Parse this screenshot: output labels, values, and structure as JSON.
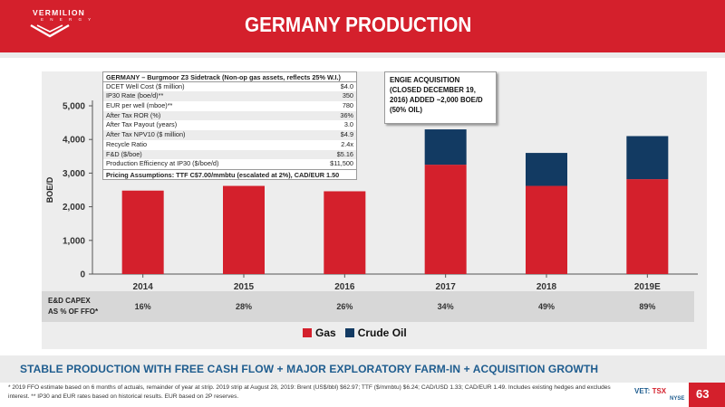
{
  "brand": {
    "name": "VERMILION",
    "sub": "E N E R G Y"
  },
  "title": "GERMANY PRODUCTION",
  "colors": {
    "header": "#d4202c",
    "gas": "#d4202c",
    "crude_oil": "#123a62",
    "banner_text": "#1f5d8f"
  },
  "info_table": {
    "title": "GERMANY – Burgmoor Z3 Sidetrack  (Non-op gas assets, reflects 25% W.I.)",
    "rows": [
      {
        "label": "DCET Well Cost ($ million)",
        "value": "$4.0"
      },
      {
        "label": "IP30 Rate (boe/d)**",
        "value": "350"
      },
      {
        "label": "EUR per well (mboe)**",
        "value": "780"
      },
      {
        "label": "After Tax ROR (%)",
        "value": "36%"
      },
      {
        "label": "After Tax Payout (years)",
        "value": "3.0"
      },
      {
        "label": "After Tax NPV10 ($ million)",
        "value": "$4.9"
      },
      {
        "label": "Recycle Ratio",
        "value": "2.4x"
      },
      {
        "label": "F&D ($/boe)",
        "value": "$5.16"
      },
      {
        "label": "Production Efficiency at IP30 ($/boe/d)",
        "value": "$11,500"
      }
    ],
    "footer": "Pricing Assumptions: TTF C$7.00/mmbtu (escalated at 2%), CAD/EUR 1.50"
  },
  "callout": {
    "text": "ENGIE ACQUISITION (CLOSED DECEMBER 19, 2016) ADDED ~2,000 BOE/D (50% OIL)"
  },
  "capex": {
    "label": "E&D CAPEX\nAS % OF FFO*",
    "values": [
      "16%",
      "28%",
      "26%",
      "34%",
      "49%",
      "89%"
    ]
  },
  "chart_data": {
    "type": "bar",
    "stacked": true,
    "categories": [
      "2014",
      "2015",
      "2016",
      "2017",
      "2018",
      "2019E"
    ],
    "series": [
      {
        "name": "Gas",
        "values": [
          2480,
          2620,
          2460,
          3250,
          2620,
          2820
        ]
      },
      {
        "name": "Crude Oil",
        "values": [
          0,
          0,
          0,
          1050,
          980,
          1280
        ]
      }
    ],
    "ylabel": "BOE/D",
    "xlabel": "",
    "ylim": [
      0,
      5000
    ],
    "yticks": [
      "0",
      "1,000",
      "2,000",
      "3,000",
      "4,000",
      "5,000"
    ],
    "legend_position": "bottom",
    "grid": false
  },
  "legend": [
    {
      "label": "Gas",
      "color": "#d4202c"
    },
    {
      "label": "Crude Oil",
      "color": "#123a62"
    }
  ],
  "banner": "STABLE PRODUCTION WITH FREE CASH FLOW + MAJOR EXPLORATORY FARM-IN + ACQUISITION GROWTH",
  "footnote": "* 2019 FFO estimate based on 6 months of actuals, remainder of year at strip. 2019 strip at August 28, 2019: Brent (US$/bbl) $62.97; TTF ($/mmbtu) $6.24; CAD/USD 1.33; CAD/EUR 1.49. Includes existing hedges and excludes interest.  ** IP30 and EUR rates based on historical results. EUR based on 2P reserves.",
  "ticker": {
    "vet": "VET:",
    "tsx": " TSX",
    "nyse": "NYSE"
  },
  "page_number": "63"
}
